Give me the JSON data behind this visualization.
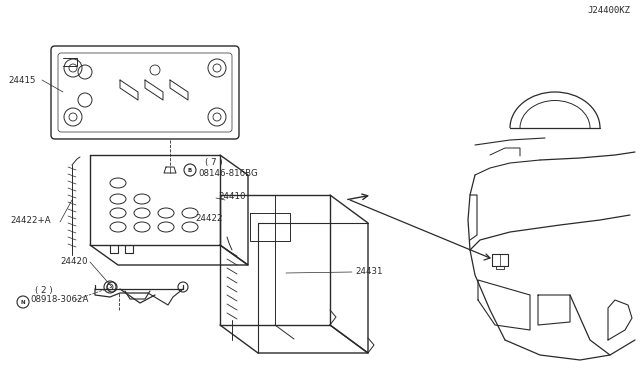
{
  "bg_color": "#ffffff",
  "line_color": "#2a2a2a",
  "diagram_code": "J24400KZ",
  "parts": {
    "battery": "24410",
    "battery_cover": "24431",
    "cable_pos": "24420",
    "cable_strap": "24422",
    "cable_strap_a": "24422+A",
    "mounting_plate": "24415",
    "bolt": "08918-3062A",
    "bolt_qty": "( 2 )",
    "screw": "08146-816BG",
    "screw_qty": "( 7 )"
  }
}
